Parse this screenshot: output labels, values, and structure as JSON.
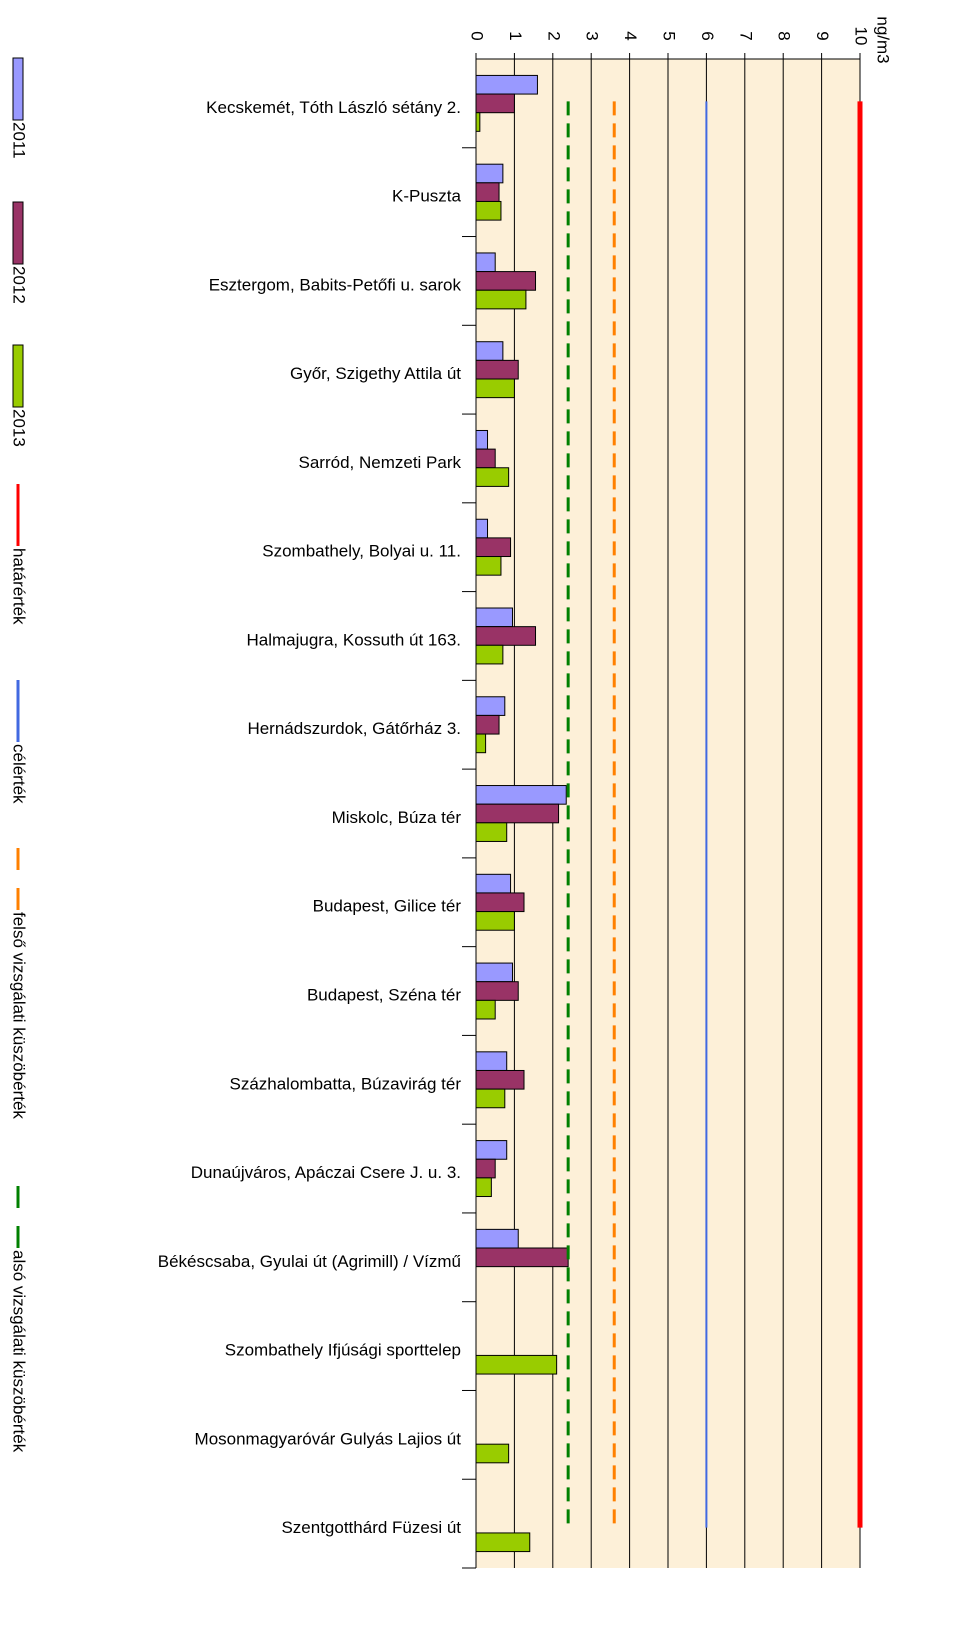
{
  "chart_data": {
    "type": "hbar",
    "unit_label": "ng/m3",
    "categories": [
      "Kecskemét, Tóth László sétány 2.",
      "K-Puszta",
      "Esztergom, Babits-Petőfi u. sarok",
      "Győr, Szigethy Attila út",
      "Sarród, Nemzeti Park",
      "Szombathely, Bolyai u. 11.",
      "Halmajugra,  Kossuth út 163.",
      "Hernádszurdok, Gátőrház 3.",
      "Miskolc, Búza tér",
      "Budapest, Gilice tér",
      "Budapest, Széna tér",
      "Százhalombatta, Búzavirág  tér",
      "Dunaújváros, Apáczai Csere  J. u. 3.",
      "Békéscsaba, Gyulai út (Agrimill) / Vízmű",
      "Szombathely Ifjúsági sporttelep",
      "Mosonmagyaróvár Gulyás Lajios út",
      "Szentgotthárd Füzesi út"
    ],
    "series": [
      {
        "name": "2011",
        "color": "#9999ff",
        "values": [
          1.6,
          0.7,
          0.5,
          0.7,
          0.3,
          0.3,
          0.95,
          0.75,
          2.35,
          0.9,
          0.95,
          0.8,
          0.8,
          1.1,
          null,
          null,
          null
        ]
      },
      {
        "name": "2012",
        "color": "#993366",
        "values": [
          1.0,
          0.6,
          1.55,
          1.1,
          0.5,
          0.9,
          1.55,
          0.6,
          2.15,
          1.25,
          1.1,
          1.25,
          0.5,
          2.4,
          null,
          null,
          null
        ]
      },
      {
        "name": "2013",
        "color": "#99cc00",
        "values": [
          0.1,
          0.65,
          1.3,
          1.0,
          0.85,
          0.65,
          0.7,
          0.25,
          0.8,
          1.0,
          0.5,
          0.75,
          0.4,
          null,
          2.1,
          0.85,
          1.4
        ]
      }
    ],
    "reference_lines": [
      {
        "name": "határérték",
        "color": "#ff0000",
        "value": 10,
        "dashed": false,
        "width": 5
      },
      {
        "name": "célérték",
        "color": "#4169e1",
        "value": 6,
        "dashed": false,
        "width": 2
      },
      {
        "name": "felső vizsgálati küszöbérték",
        "color": "#ff8000",
        "value": 3.6,
        "dashed": true,
        "width": 3
      },
      {
        "name": "alsó vizsgálati küszöbérték",
        "color": "#008000",
        "value": 2.4,
        "dashed": true,
        "width": 3
      }
    ],
    "xlim": [
      0,
      10
    ],
    "xticks": [
      0,
      1,
      2,
      3,
      4,
      5,
      6,
      7,
      8,
      9,
      10
    ],
    "grid": true
  }
}
